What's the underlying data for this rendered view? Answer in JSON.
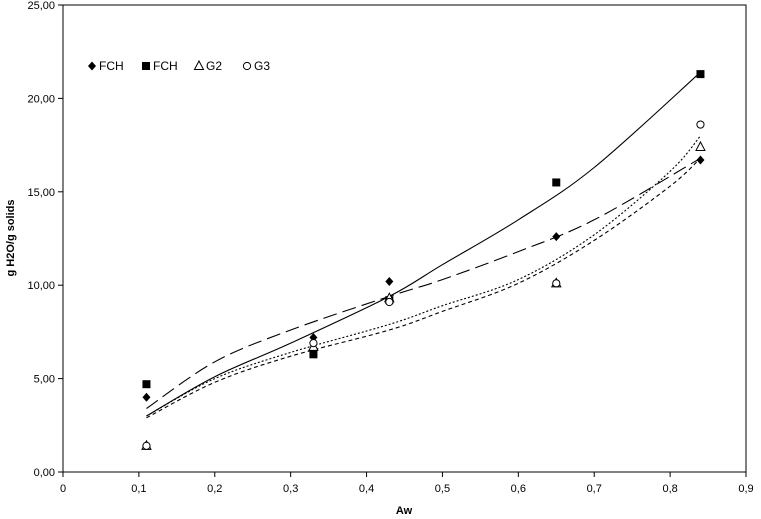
{
  "chart_data": {
    "type": "scatter",
    "xlabel": "Aw",
    "ylabel": "g H2O/g solids",
    "xlim": [
      0,
      0.9
    ],
    "ylim": [
      0,
      25
    ],
    "x_ticks": [
      "0",
      "0,1",
      "0,2",
      "0,3",
      "0,4",
      "0,5",
      "0,6",
      "0,7",
      "0,8",
      "0,9"
    ],
    "y_ticks": [
      "0,00",
      "5,00",
      "10,00",
      "15,00",
      "20,00",
      "25,00"
    ],
    "grid": false,
    "legend_position": "top-left",
    "series": [
      {
        "name": "FCH",
        "marker": "diamond-filled",
        "x": [
          0.11,
          0.33,
          0.43,
          0.65,
          0.84
        ],
        "y": [
          4.0,
          7.2,
          10.2,
          12.6,
          16.7
        ],
        "trend": {
          "style": "long-dash",
          "x": [
            0.11,
            0.2,
            0.3,
            0.43,
            0.5,
            0.6,
            0.7,
            0.84
          ],
          "y": [
            3.4,
            5.9,
            7.6,
            9.4,
            10.3,
            11.8,
            13.5,
            16.8
          ]
        }
      },
      {
        "name": "FCH",
        "marker": "square-filled",
        "x": [
          0.11,
          0.33,
          0.43,
          0.65,
          0.84
        ],
        "y": [
          4.7,
          6.3,
          9.2,
          15.5,
          21.3
        ],
        "trend": {
          "style": "solid",
          "x": [
            0.11,
            0.2,
            0.3,
            0.43,
            0.5,
            0.6,
            0.7,
            0.84
          ],
          "y": [
            3.0,
            5.1,
            6.9,
            9.4,
            11.1,
            13.5,
            16.3,
            21.4
          ]
        }
      },
      {
        "name": "G2",
        "marker": "triangle-open",
        "x": [
          0.11,
          0.33,
          0.43,
          0.65,
          0.84
        ],
        "y": [
          1.4,
          6.7,
          9.3,
          10.1,
          17.4
        ],
        "trend": {
          "style": "short-dash",
          "x": [
            0.11,
            0.2,
            0.3,
            0.43,
            0.5,
            0.6,
            0.7,
            0.8,
            0.84
          ],
          "y": [
            2.9,
            4.8,
            6.2,
            7.6,
            8.6,
            10.1,
            12.4,
            15.3,
            16.8
          ]
        }
      },
      {
        "name": "G3",
        "marker": "circle-open",
        "x": [
          0.11,
          0.33,
          0.43,
          0.65,
          0.84
        ],
        "y": [
          1.4,
          6.9,
          9.1,
          10.1,
          18.6
        ],
        "trend": {
          "style": "dotted",
          "x": [
            0.11,
            0.2,
            0.3,
            0.43,
            0.5,
            0.6,
            0.7,
            0.8,
            0.84
          ],
          "y": [
            3.0,
            5.0,
            6.4,
            7.9,
            8.9,
            10.3,
            12.7,
            16.1,
            18.0
          ]
        }
      }
    ]
  }
}
